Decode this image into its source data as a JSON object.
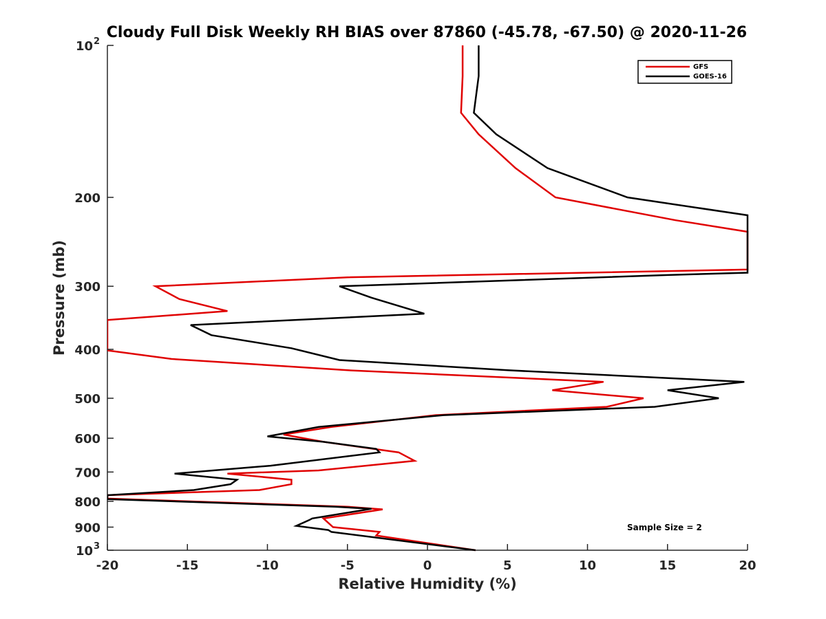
{
  "chart_data": {
    "type": "line",
    "title": "Cloudy Full Disk Weekly RH BIAS over 87860 (-45.78, -67.50) @ 2020-11-26",
    "xlabel": "Relative Humidity (%)",
    "ylabel": "Pressure (mb)",
    "xlim": [
      -20,
      20
    ],
    "ylim": [
      100,
      1000
    ],
    "yscale": "log",
    "y_reversed": true,
    "grid": false,
    "legend_position": "top-right",
    "x_ticks": [
      "-20",
      "-15",
      "-10",
      "-5",
      "0",
      "5",
      "10",
      "15",
      "20"
    ],
    "y_ticks": [
      "200",
      "300",
      "400",
      "500",
      "600",
      "700",
      "800",
      "900"
    ],
    "y_tick_top": {
      "base": "10",
      "exp": "2"
    },
    "y_tick_bottom": {
      "base": "10",
      "exp": "3"
    },
    "annotation": "Sample Size = 2",
    "series": [
      {
        "name": "GFS",
        "color": "#e00000",
        "points": [
          [
            2.2,
            100
          ],
          [
            2.2,
            115
          ],
          [
            2.1,
            136
          ],
          [
            3.2,
            150
          ],
          [
            5.5,
            175
          ],
          [
            8.0,
            200
          ],
          [
            15.5,
            222
          ],
          [
            20.0,
            234
          ],
          [
            20.0,
            278
          ],
          [
            -5.0,
            288
          ],
          [
            -17.0,
            300
          ],
          [
            -15.5,
            318
          ],
          [
            -12.5,
            336
          ],
          [
            -20.0,
            350
          ],
          [
            -20.0,
            402
          ],
          [
            -16.0,
            418
          ],
          [
            -5.0,
            440
          ],
          [
            11.0,
            464
          ],
          [
            7.8,
            482
          ],
          [
            13.5,
            500
          ],
          [
            11.2,
            520
          ],
          [
            0.5,
            540
          ],
          [
            -6.0,
            570
          ],
          [
            -9.0,
            590
          ],
          [
            -6.5,
            610
          ],
          [
            -1.8,
            640
          ],
          [
            -0.8,
            665
          ],
          [
            -6.8,
            695
          ],
          [
            -12.5,
            705
          ],
          [
            -8.5,
            725
          ],
          [
            -8.5,
            740
          ],
          [
            -10.5,
            760
          ],
          [
            -20.0,
            778
          ],
          [
            -20.0,
            790
          ],
          [
            -5.0,
            820
          ],
          [
            -2.8,
            830
          ],
          [
            -6.5,
            865
          ],
          [
            -5.9,
            900
          ],
          [
            -3.0,
            920
          ],
          [
            -3.2,
            935
          ],
          [
            3.0,
            1000
          ]
        ]
      },
      {
        "name": "GOES-16",
        "color": "#000000",
        "points": [
          [
            3.2,
            100
          ],
          [
            3.2,
            115
          ],
          [
            2.9,
            136
          ],
          [
            4.3,
            150
          ],
          [
            7.5,
            175
          ],
          [
            12.5,
            200
          ],
          [
            20.0,
            217
          ],
          [
            20.0,
            282
          ],
          [
            15.0,
            285
          ],
          [
            -5.5,
            300
          ],
          [
            -3.5,
            316
          ],
          [
            -0.2,
            340
          ],
          [
            -14.8,
            358
          ],
          [
            -13.5,
            375
          ],
          [
            -8.5,
            398
          ],
          [
            -5.5,
            420
          ],
          [
            5.0,
            440
          ],
          [
            19.8,
            464
          ],
          [
            15.0,
            482
          ],
          [
            18.2,
            500
          ],
          [
            14.2,
            520
          ],
          [
            1.0,
            540
          ],
          [
            -6.8,
            570
          ],
          [
            -10.0,
            595
          ],
          [
            -6.5,
            610
          ],
          [
            -3.2,
            630
          ],
          [
            -3.0,
            640
          ],
          [
            -9.8,
            680
          ],
          [
            -15.8,
            705
          ],
          [
            -11.9,
            725
          ],
          [
            -12.3,
            740
          ],
          [
            -14.6,
            760
          ],
          [
            -20.0,
            778
          ],
          [
            -20.0,
            792
          ],
          [
            -5.8,
            820
          ],
          [
            -3.5,
            828
          ],
          [
            -7.2,
            865
          ],
          [
            -7.4,
            872
          ],
          [
            -8.2,
            895
          ],
          [
            -6.2,
            912
          ],
          [
            -6.0,
            920
          ],
          [
            3.0,
            1000
          ]
        ]
      }
    ]
  }
}
